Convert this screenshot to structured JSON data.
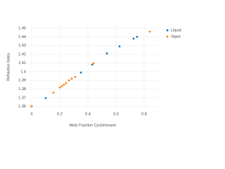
{
  "chart_data": {
    "type": "scatter",
    "x_label": "Mole Fraction Cyclohexane",
    "y_label": "Refractive Index",
    "xlim": [
      -0.025,
      0.9
    ],
    "ylim": [
      1.357,
      1.454
    ],
    "xticks": [
      0,
      0.2,
      0.4,
      0.6,
      0.8
    ],
    "yticks": [
      1.36,
      1.37,
      1.38,
      1.39,
      1.4,
      1.41,
      1.42,
      1.43,
      1.44,
      1.45
    ],
    "grid": true,
    "legend": "right",
    "series": [
      {
        "name": "Liquid",
        "color": "#1f77b4",
        "x": [
          0,
          0.1,
          0.35,
          0.43,
          0.535,
          0.625,
          0.725,
          0.75
        ],
        "values": [
          1.3603,
          1.3697,
          1.399,
          1.408,
          1.421,
          1.429,
          1.438,
          1.44
        ]
      },
      {
        "name": "Vapor",
        "color": "#ff7f0e",
        "x": [
          0,
          0.155,
          0.2,
          0.215,
          0.23,
          0.245,
          0.265,
          0.285,
          0.31,
          0.44,
          0.84
        ],
        "values": [
          1.3603,
          1.376,
          1.382,
          1.3835,
          1.385,
          1.387,
          1.39,
          1.392,
          1.394,
          1.4095,
          1.446
        ]
      }
    ]
  }
}
